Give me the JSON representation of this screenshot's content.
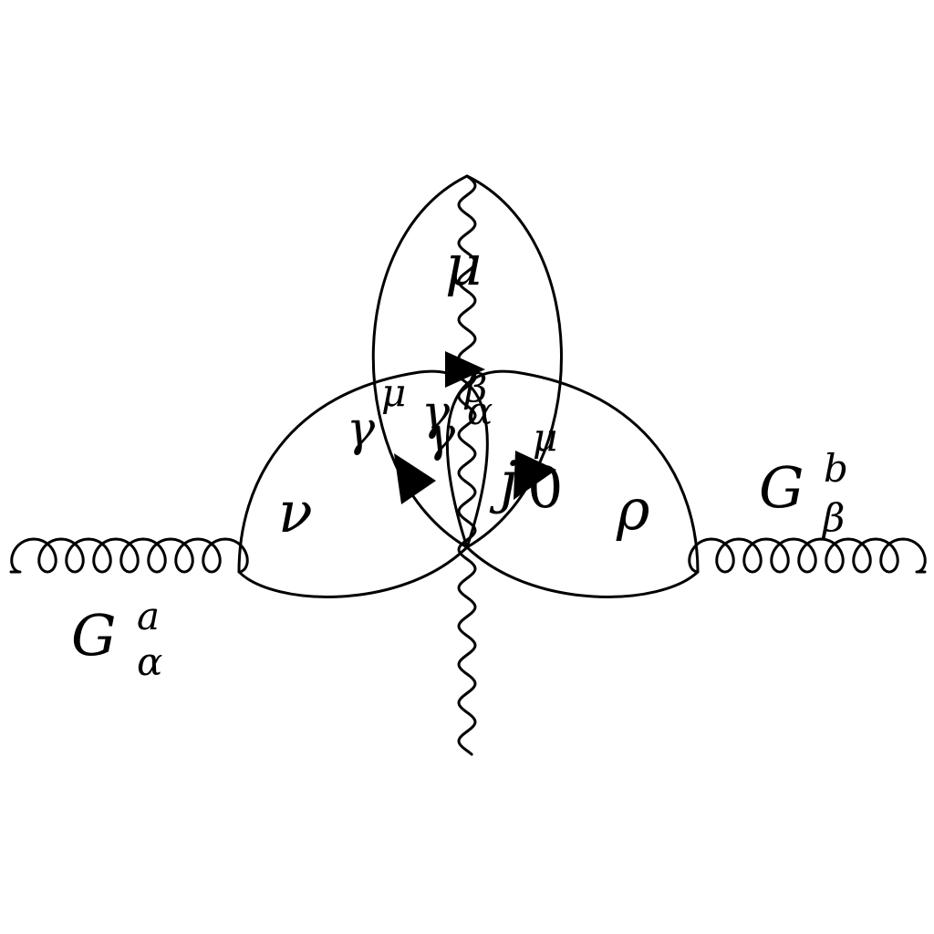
{
  "diagram": {
    "labels": {
      "loop_top": "μ",
      "loop_left": "ν",
      "loop_right": "ρ",
      "gluon_left_main": "G",
      "gluon_left_sup": "a",
      "gluon_left_sub": "α",
      "gluon_right_main": "G",
      "gluon_right_sup": "b",
      "gluon_right_sub": "β",
      "vertex_left_main": "γ",
      "vertex_left_sup": "μ",
      "vertex_center_a_main": "γ",
      "vertex_center_a_sup": "β",
      "vertex_center_b_main": "γ",
      "vertex_center_b_sup": "α",
      "current_main": "j",
      "current_sup": "μ",
      "current_sub": "0"
    },
    "colors": {
      "stroke": "#000000",
      "background": "#ffffff"
    }
  }
}
